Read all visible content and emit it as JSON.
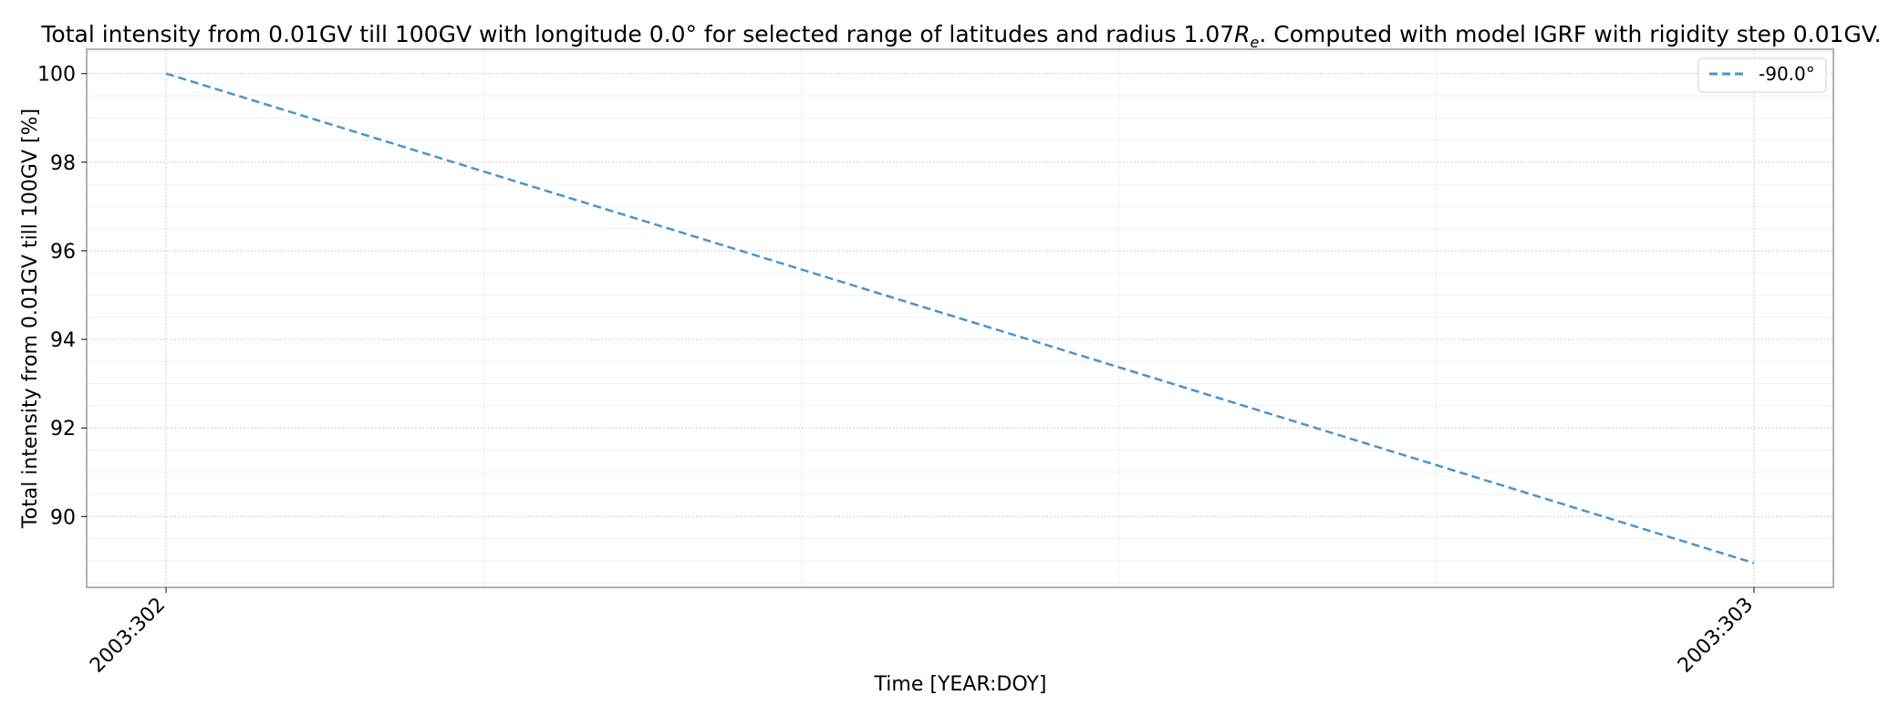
{
  "chart_data": {
    "type": "line",
    "title_prefix": "Total intensity from 0.01GV till 100GV with longitude 0.0° for selected range of latitudes and radius 1.07",
    "title_r": "R",
    "title_sub": "e",
    "title_suffix": ". Computed with model IGRF with rigidity step 0.01GV.",
    "xlabel": "Time [YEAR:DOY]",
    "ylabel": "Total intensity from 0.01GV till 100GV [%]",
    "categories": [
      "2003:302",
      "2003:303"
    ],
    "x": [
      0,
      1
    ],
    "xlim": [
      -0.05,
      1.05
    ],
    "ylim": [
      88.4,
      100.55
    ],
    "yticks": [
      "90",
      "92",
      "94",
      "96",
      "98",
      "100"
    ],
    "grid": true,
    "legend_position": "top-right",
    "series": [
      {
        "name": "-90.0°",
        "values": [
          100.0,
          88.95
        ],
        "color": "#4a94c9",
        "style": "dashed"
      }
    ]
  }
}
